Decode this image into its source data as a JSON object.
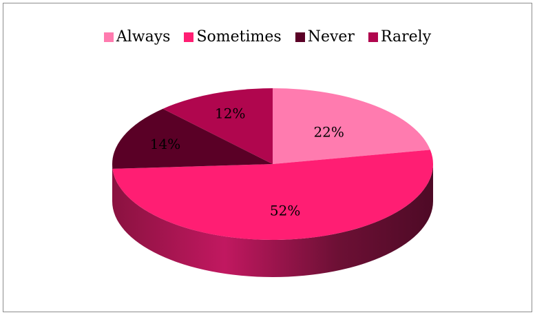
{
  "chart_data": {
    "type": "pie",
    "style": "3d",
    "legend_position": "top",
    "categories": [
      "Always",
      "Sometimes",
      "Never",
      "Rarely"
    ],
    "values": [
      22,
      52,
      14,
      12
    ],
    "labels": [
      "22%",
      "52%",
      "14%",
      "12%"
    ],
    "colors": [
      "#FF7BAF",
      "#FF1E73",
      "#5A0026",
      "#B0064E"
    ]
  }
}
